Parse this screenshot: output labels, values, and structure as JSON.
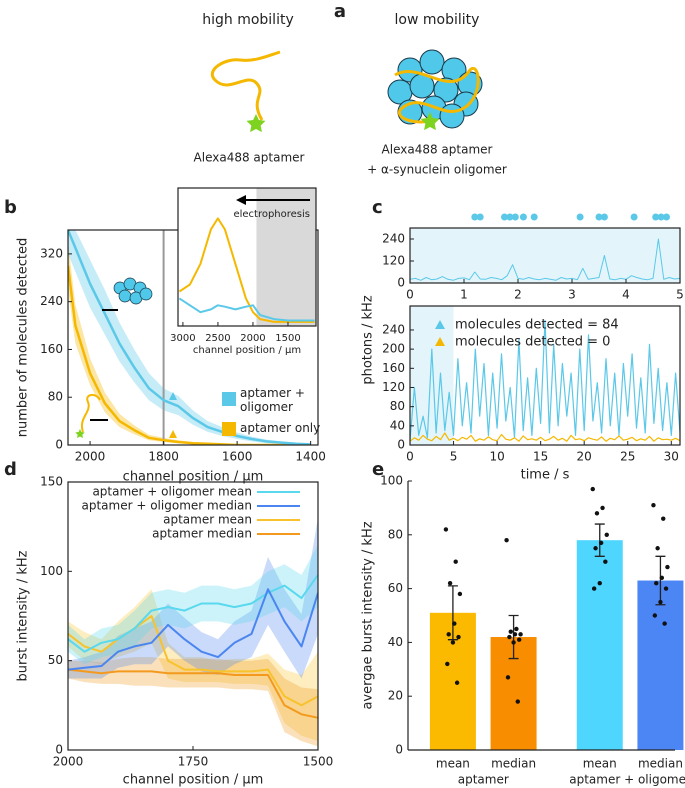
{
  "panel_a": {
    "label": "a",
    "left_title": "high mobility",
    "left_caption": "Alexa488 aptamer",
    "right_title": "low mobility",
    "right_caption_line1": "Alexa488 aptamer",
    "right_caption_line2": "+ α-synuclein oligomer"
  },
  "chart_data": [
    {
      "type": "line",
      "panel_label": "b",
      "x_label": "channel position / µm",
      "y_label": "number of molecules detected",
      "xlim": [
        2060,
        1380
      ],
      "ylim": [
        0,
        360
      ],
      "xticks": [
        2000,
        1800,
        1600,
        1400
      ],
      "yticks": [
        0,
        80,
        160,
        240,
        320
      ],
      "reference_line": 1800,
      "x": [
        2060,
        2040,
        2000,
        1960,
        1920,
        1880,
        1840,
        1800,
        1760,
        1720,
        1680,
        1640,
        1600,
        1560,
        1520,
        1480,
        1440,
        1400
      ],
      "series": [
        {
          "name": "aptamer + oligomer",
          "color": "#5bc8e8",
          "values": [
            360,
            330,
            270,
            220,
            170,
            130,
            95,
            75,
            65,
            45,
            30,
            22,
            15,
            10,
            6,
            4,
            2,
            1
          ],
          "lower": [
            320,
            290,
            230,
            185,
            140,
            105,
            75,
            58,
            50,
            34,
            22,
            15,
            10,
            6,
            3,
            2,
            1,
            0
          ],
          "upper": [
            360,
            360,
            310,
            260,
            205,
            160,
            120,
            95,
            82,
            58,
            40,
            30,
            21,
            14,
            9,
            6,
            4,
            2
          ]
        },
        {
          "name": "aptamer only",
          "color": "#f5b800",
          "values": [
            300,
            200,
            120,
            70,
            40,
            25,
            12,
            8,
            5,
            3,
            2,
            1,
            0,
            0,
            0,
            0,
            0,
            0
          ],
          "lower": [
            260,
            170,
            100,
            55,
            30,
            18,
            8,
            5,
            3,
            2,
            1,
            0,
            0,
            0,
            0,
            0,
            0,
            0
          ],
          "upper": [
            340,
            235,
            145,
            88,
            52,
            33,
            17,
            12,
            8,
            5,
            3,
            2,
            1,
            1,
            1,
            1,
            1,
            1
          ]
        }
      ]
    },
    {
      "type": "line",
      "x_label": "channel position / µm",
      "annotation": "electrophoresis",
      "xlim": [
        3070,
        1100
      ],
      "ylim": [
        0,
        100
      ],
      "xticks": [
        3000,
        2500,
        2000,
        1500
      ],
      "shaded_range": [
        1950,
        1100
      ],
      "x": [
        3050,
        2900,
        2750,
        2600,
        2500,
        2400,
        2250,
        2100,
        2000,
        1900,
        1700,
        1500,
        1300,
        1120
      ],
      "series": [
        {
          "color": "#f5b800",
          "values": [
            25,
            30,
            45,
            70,
            78,
            70,
            45,
            20,
            10,
            5,
            3,
            3,
            3,
            3
          ]
        },
        {
          "color": "#5bc8e8",
          "values": [
            20,
            15,
            10,
            12,
            15,
            14,
            12,
            14,
            15,
            8,
            5,
            4,
            4,
            4
          ]
        }
      ]
    },
    {
      "type": "line",
      "panel_label": "c",
      "xlim": [
        0,
        5
      ],
      "ylim": [
        0,
        300
      ],
      "xticks": [
        0,
        1,
        2,
        3,
        4,
        5
      ],
      "yticks": [
        0,
        120,
        240
      ],
      "events": [
        1.2,
        1.3,
        1.75,
        1.85,
        1.95,
        2.1,
        2.3,
        3.15,
        3.5,
        3.6,
        4.15,
        4.55,
        4.65,
        4.75
      ],
      "event_color": "#5bc8e8",
      "x": [
        0,
        0.1,
        0.2,
        0.3,
        0.4,
        0.5,
        0.6,
        0.7,
        0.8,
        0.9,
        1,
        1.1,
        1.2,
        1.3,
        1.4,
        1.5,
        1.6,
        1.7,
        1.8,
        1.9,
        2,
        2.1,
        2.2,
        2.3,
        2.4,
        2.5,
        2.6,
        2.7,
        2.8,
        2.9,
        3,
        3.1,
        3.2,
        3.3,
        3.4,
        3.5,
        3.6,
        3.7,
        3.8,
        3.9,
        4,
        4.1,
        4.2,
        4.3,
        4.4,
        4.5,
        4.6,
        4.7,
        4.8,
        4.9,
        5
      ],
      "series": [
        {
          "color": "#5bc8e8",
          "values": [
            20,
            25,
            15,
            30,
            18,
            22,
            35,
            20,
            15,
            25,
            28,
            18,
            60,
            22,
            20,
            30,
            25,
            18,
            40,
            100,
            25,
            20,
            30,
            22,
            18,
            25,
            20,
            15,
            30,
            22,
            25,
            18,
            80,
            20,
            25,
            30,
            150,
            22,
            18,
            25,
            20,
            40,
            30,
            22,
            18,
            25,
            240,
            20,
            30,
            22,
            25
          ]
        }
      ]
    },
    {
      "type": "line",
      "x_label": "time / s",
      "y_label": "photons / kHz",
      "xlim": [
        0,
        31
      ],
      "ylim": [
        0,
        290
      ],
      "xticks": [
        0,
        5,
        10,
        15,
        20,
        25,
        30
      ],
      "yticks": [
        0,
        40,
        80,
        120,
        160,
        200,
        240
      ],
      "zoom_range": [
        0,
        5
      ],
      "x": [
        0,
        0.5,
        1,
        1.5,
        2,
        2.5,
        3,
        3.5,
        4,
        4.5,
        5,
        5.5,
        6,
        6.5,
        7,
        7.5,
        8,
        8.5,
        9,
        9.5,
        10,
        10.5,
        11,
        11.5,
        12,
        12.5,
        13,
        13.5,
        14,
        14.5,
        15,
        15.5,
        16,
        16.5,
        17,
        17.5,
        18,
        18.5,
        19,
        19.5,
        20,
        20.5,
        21,
        21.5,
        22,
        22.5,
        23,
        23.5,
        24,
        24.5,
        25,
        25.5,
        26,
        26.5,
        27,
        27.5,
        28,
        28.5,
        29,
        29.5,
        30,
        30.5,
        31
      ],
      "series": [
        {
          "name": "molecules detected = 84",
          "color": "#5bc8e8",
          "values": [
            10,
            120,
            20,
            60,
            15,
            200,
            25,
            150,
            30,
            110,
            20,
            180,
            40,
            130,
            25,
            200,
            60,
            170,
            20,
            150,
            35,
            190,
            50,
            120,
            15,
            220,
            30,
            140,
            20,
            160,
            45,
            260,
            25,
            210,
            40,
            170,
            60,
            150,
            20,
            200,
            30,
            230,
            50,
            130,
            25,
            180,
            40,
            150,
            20,
            170,
            60,
            190,
            35,
            140,
            25,
            210,
            45,
            160,
            30,
            130,
            20,
            150,
            25
          ]
        },
        {
          "name": "molecules detected = 0",
          "color": "#f5b800",
          "values": [
            8,
            15,
            10,
            20,
            12,
            9,
            18,
            11,
            25,
            10,
            14,
            9,
            16,
            12,
            20,
            8,
            13,
            10,
            17,
            11,
            9,
            22,
            12,
            10,
            15,
            8,
            19,
            11,
            13,
            10,
            16,
            9,
            12,
            18,
            10,
            14,
            8,
            20,
            11,
            13,
            9,
            15,
            12,
            10,
            17,
            8,
            14,
            11,
            19,
            10,
            12,
            16,
            9,
            13,
            10,
            18,
            8,
            15,
            11,
            12,
            10,
            14,
            9
          ]
        }
      ]
    },
    {
      "type": "line",
      "panel_label": "d",
      "x_label": "channel position / µm",
      "y_label": "burst intensity / kHz",
      "xlim": [
        2000,
        1500
      ],
      "ylim": [
        0,
        150
      ],
      "xticks": [
        2000,
        1750,
        1500
      ],
      "yticks": [
        0,
        50,
        100,
        150
      ],
      "x": [
        2000,
        1967,
        1933,
        1900,
        1867,
        1833,
        1800,
        1767,
        1733,
        1700,
        1667,
        1633,
        1600,
        1567,
        1533,
        1500
      ],
      "series": [
        {
          "name": "aptamer + oligomer mean",
          "color": "#5ad8ee",
          "values": [
            62,
            55,
            60,
            62,
            68,
            78,
            80,
            78,
            82,
            82,
            80,
            82,
            88,
            92,
            85,
            98
          ],
          "lower": [
            55,
            48,
            52,
            54,
            58,
            68,
            70,
            68,
            72,
            72,
            70,
            72,
            76,
            80,
            72,
            80
          ],
          "upper": [
            70,
            62,
            68,
            70,
            78,
            88,
            90,
            88,
            92,
            92,
            90,
            92,
            100,
            104,
            98,
            115
          ]
        },
        {
          "name": "aptamer + oligomer median",
          "color": "#4b86f0",
          "values": [
            45,
            46,
            47,
            55,
            58,
            60,
            70,
            62,
            55,
            52,
            60,
            65,
            90,
            72,
            58,
            88
          ],
          "lower": [
            40,
            40,
            40,
            46,
            48,
            48,
            58,
            50,
            44,
            42,
            48,
            52,
            70,
            55,
            40,
            65
          ],
          "upper": [
            50,
            52,
            55,
            64,
            68,
            72,
            82,
            74,
            66,
            62,
            72,
            78,
            108,
            90,
            76,
            130
          ]
        },
        {
          "name": "aptamer mean",
          "color": "#f8c22c",
          "values": [
            65,
            58,
            55,
            62,
            68,
            75,
            50,
            45,
            45,
            44,
            44,
            44,
            45,
            30,
            25,
            30
          ],
          "lower": [
            58,
            50,
            48,
            52,
            55,
            60,
            40,
            38,
            38,
            38,
            37,
            37,
            36,
            15,
            8,
            5
          ],
          "upper": [
            72,
            66,
            62,
            72,
            80,
            90,
            60,
            52,
            52,
            50,
            51,
            51,
            54,
            45,
            42,
            55
          ]
        },
        {
          "name": "aptamer median",
          "color": "#f39a1e",
          "values": [
            45,
            44,
            43,
            44,
            44,
            44,
            43,
            43,
            43,
            43,
            42,
            42,
            42,
            25,
            20,
            18
          ],
          "lower": [
            40,
            38,
            37,
            37,
            36,
            36,
            35,
            35,
            35,
            35,
            34,
            34,
            33,
            10,
            5,
            2
          ],
          "upper": [
            50,
            50,
            49,
            51,
            52,
            52,
            51,
            51,
            51,
            51,
            50,
            50,
            51,
            40,
            35,
            34
          ]
        }
      ]
    },
    {
      "type": "bar",
      "panel_label": "e",
      "y_label": "avergae burst intensity / kHz",
      "ylim": [
        0,
        100
      ],
      "yticks": [
        0,
        20,
        40,
        60,
        80,
        100
      ],
      "categories": [
        "mean",
        "median",
        "mean",
        "median"
      ],
      "groups": [
        "aptamer",
        "aptamer + oligomer"
      ],
      "values": [
        51,
        42,
        78,
        63
      ],
      "errors": [
        10,
        8,
        6,
        9
      ],
      "colors": [
        "#fbb900",
        "#f98d00",
        "#4fd6ff",
        "#4c86f5"
      ],
      "points": [
        [
          82,
          70,
          62,
          58,
          47,
          43,
          42,
          40,
          32,
          25
        ],
        [
          78,
          45,
          44,
          43,
          43,
          42,
          41,
          40,
          27,
          18
        ],
        [
          97,
          90,
          88,
          80,
          77,
          75,
          70,
          62,
          60
        ],
        [
          91,
          86,
          75,
          68,
          64,
          62,
          60,
          55,
          50,
          47
        ]
      ]
    }
  ]
}
